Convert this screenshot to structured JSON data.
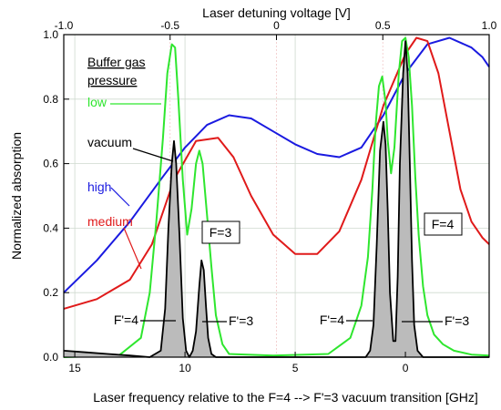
{
  "chart_data": {
    "type": "line",
    "xlabel": "Laser frequency relative to the F=4 --> F'=3 vacuum transition [GHz]",
    "ylabel": "Normalized absorption",
    "top_xlabel": "Laser detuning voltage [V]",
    "xlim": [
      15.5,
      -3.8
    ],
    "top_xlim": [
      -1.0,
      1.0
    ],
    "ylim": [
      0.0,
      1.0
    ],
    "x_ticks": [
      "15",
      "10",
      "5",
      "0"
    ],
    "x_tick_values": [
      15,
      10,
      5,
      0
    ],
    "top_ticks": [
      "-1.0",
      "-0.5",
      "0",
      "0.5",
      "1.0"
    ],
    "top_tick_values": [
      -1.0,
      -0.5,
      0,
      0.5,
      1.0
    ],
    "y_ticks": [
      "0.0",
      "0.2",
      "0.4",
      "0.6",
      "0.8",
      "1.0"
    ],
    "y_tick_values": [
      0.0,
      0.2,
      0.4,
      0.6,
      0.8,
      1.0
    ],
    "grid": true,
    "series": [
      {
        "name": "low",
        "color": "#2ee62e",
        "x": [
          15.5,
          13,
          12.0,
          11.6,
          11.3,
          11.0,
          10.8,
          10.6,
          10.45,
          10.3,
          10.1,
          9.9,
          9.7,
          9.5,
          9.35,
          9.2,
          9.0,
          8.8,
          8.6,
          8.3,
          8.0,
          6,
          3.5,
          2.5,
          2.0,
          1.7,
          1.5,
          1.35,
          1.2,
          1.05,
          0.9,
          0.8,
          0.65,
          0.5,
          0.3,
          0.15,
          0.0,
          -0.15,
          -0.3,
          -0.45,
          -0.6,
          -0.8,
          -1.0,
          -1.3,
          -1.7,
          -2.2,
          -3.0,
          -3.8
        ],
        "y": [
          0.0,
          0.005,
          0.06,
          0.2,
          0.42,
          0.68,
          0.88,
          0.97,
          0.96,
          0.8,
          0.55,
          0.38,
          0.46,
          0.6,
          0.64,
          0.6,
          0.44,
          0.28,
          0.13,
          0.04,
          0.01,
          0.005,
          0.01,
          0.06,
          0.16,
          0.31,
          0.52,
          0.72,
          0.84,
          0.87,
          0.79,
          0.67,
          0.57,
          0.65,
          0.88,
          0.98,
          0.99,
          0.93,
          0.78,
          0.56,
          0.38,
          0.22,
          0.13,
          0.07,
          0.04,
          0.02,
          0.008,
          0.005
        ]
      },
      {
        "name": "medium",
        "color": "#e01a1a",
        "x": [
          15.5,
          14.0,
          12.5,
          11.5,
          10.5,
          9.5,
          8.5,
          7.8,
          7.0,
          6.0,
          5.0,
          4.0,
          3.0,
          2.0,
          1.0,
          0.0,
          -0.5,
          -1.0,
          -1.5,
          -2.0,
          -2.5,
          -3.0,
          -3.5,
          -3.8
        ],
        "y": [
          0.15,
          0.18,
          0.24,
          0.35,
          0.55,
          0.67,
          0.68,
          0.62,
          0.5,
          0.38,
          0.32,
          0.32,
          0.39,
          0.55,
          0.78,
          0.94,
          0.99,
          0.98,
          0.88,
          0.7,
          0.52,
          0.42,
          0.37,
          0.35
        ]
      },
      {
        "name": "high",
        "color": "#1a1ae0",
        "x": [
          15.5,
          14.0,
          12.5,
          11.0,
          10.0,
          9.0,
          8.0,
          7.0,
          6.0,
          5.0,
          4.0,
          3.0,
          2.0,
          1.0,
          0.0,
          -1.0,
          -2.0,
          -3.0,
          -3.5,
          -3.8
        ],
        "y": [
          0.2,
          0.3,
          0.42,
          0.56,
          0.65,
          0.72,
          0.75,
          0.74,
          0.7,
          0.66,
          0.63,
          0.62,
          0.65,
          0.75,
          0.88,
          0.97,
          0.99,
          0.96,
          0.93,
          0.9
        ]
      },
      {
        "name": "vacuum",
        "color": "#000000",
        "fill": "#bbbbbb",
        "x": [
          15.5,
          14.5,
          13.5,
          12.5,
          11.6,
          11.1,
          10.9,
          10.75,
          10.6,
          10.5,
          10.4,
          10.25,
          10.1,
          9.95,
          9.8,
          9.65,
          9.5,
          9.35,
          9.25,
          9.15,
          9.05,
          8.95,
          8.8,
          8.6,
          8.0,
          6.0,
          3.0,
          1.8,
          1.6,
          1.45,
          1.3,
          1.15,
          1.0,
          0.9,
          0.8,
          0.7,
          0.55,
          0.45,
          0.35,
          0.25,
          0.1,
          0.0,
          -0.1,
          -0.2,
          -0.3,
          -0.4,
          -0.55,
          -0.8,
          -3.8
        ],
        "y": [
          0.02,
          0.015,
          0.01,
          0.005,
          0.0,
          0.02,
          0.15,
          0.4,
          0.6,
          0.67,
          0.6,
          0.38,
          0.12,
          0.02,
          0.0,
          0.02,
          0.08,
          0.22,
          0.3,
          0.27,
          0.16,
          0.06,
          0.01,
          0.0,
          0.0,
          0.0,
          0.0,
          0.0,
          0.02,
          0.1,
          0.35,
          0.64,
          0.73,
          0.66,
          0.45,
          0.2,
          0.05,
          0.05,
          0.25,
          0.6,
          0.88,
          0.98,
          0.88,
          0.6,
          0.3,
          0.1,
          0.02,
          0.0,
          0.0
        ]
      }
    ],
    "annotations": {
      "legend_title_1": "Buffer gas",
      "legend_title_2": "pressure",
      "low": "low",
      "vacuum": "vacuum",
      "high": "high",
      "medium": "medium",
      "f3_box": "F=3",
      "f4_box": "F=4",
      "fp4_left": "F'=4",
      "fp3_left": "F'=3",
      "fp4_right": "F'=4",
      "fp3_right": "F'=3"
    }
  }
}
